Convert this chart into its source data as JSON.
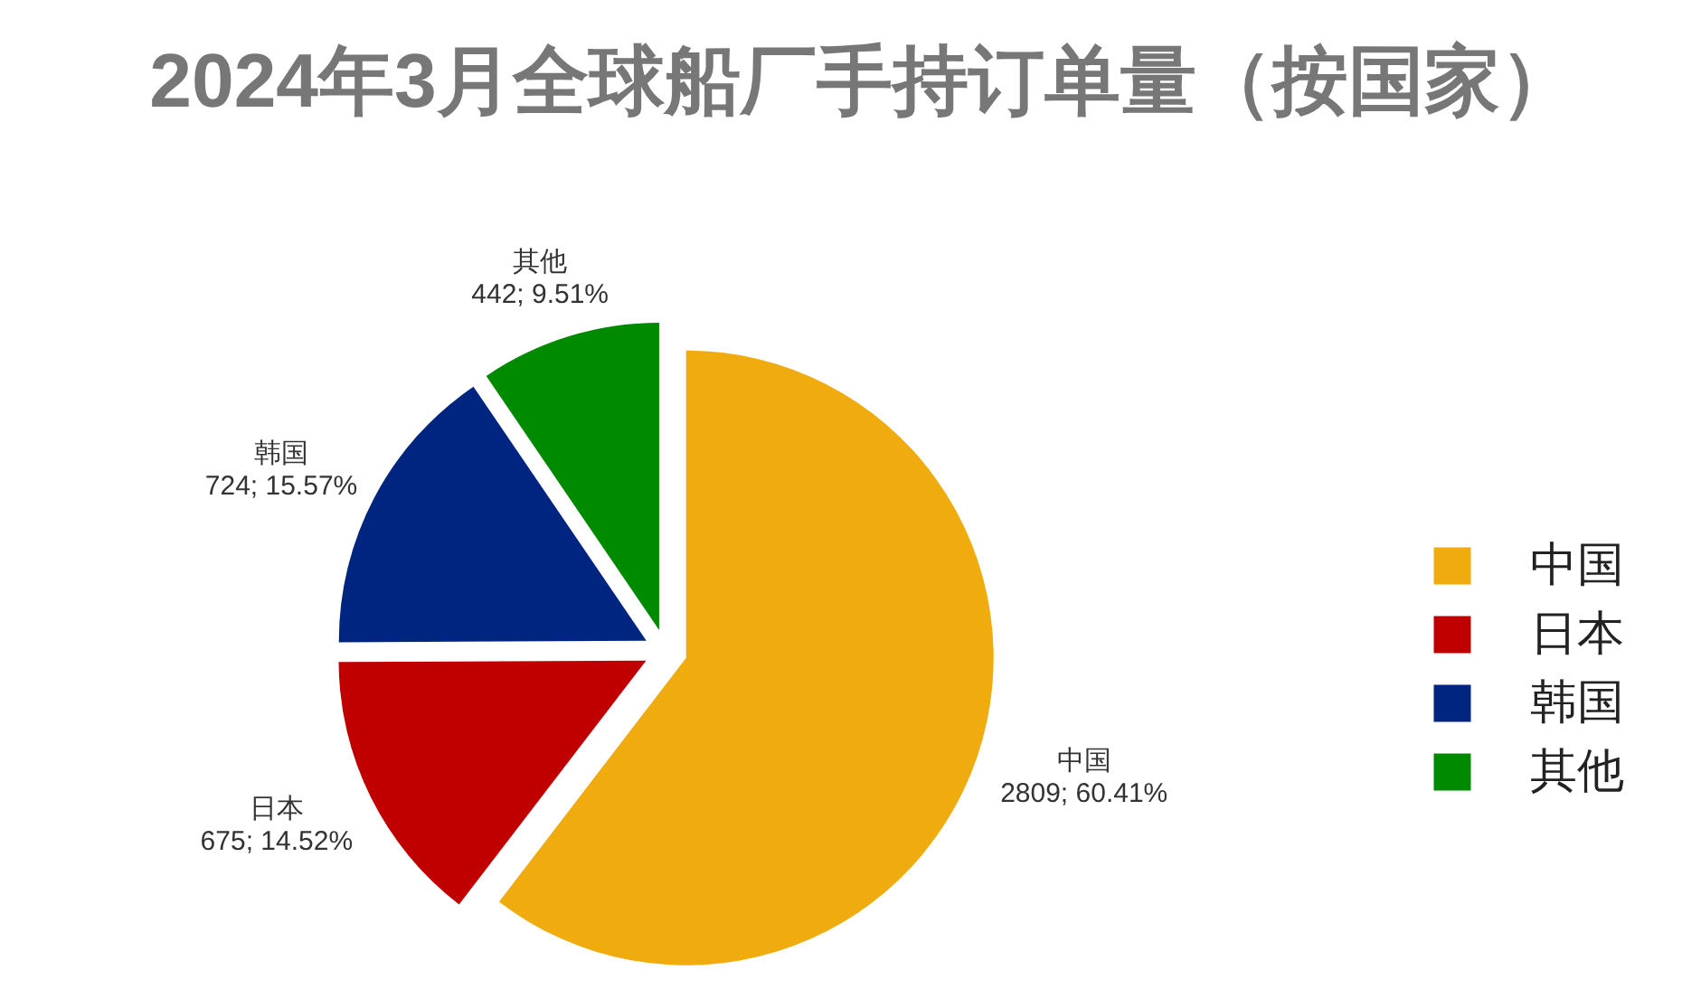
{
  "chart_data": {
    "type": "pie",
    "title": "2024年3月全球船厂手持订单量（按国家）",
    "categories": [
      "中国",
      "日本",
      "韩国",
      "其他"
    ],
    "values": [
      2809,
      675,
      724,
      442
    ],
    "colors": [
      "#f0ab0e",
      "#c00000",
      "#002580",
      "#008a00"
    ],
    "value_labels": [
      "2809; 60.41%",
      "675; 14.52%",
      "724; 15.57%",
      "442; 9.51%"
    ],
    "legend": "right"
  }
}
